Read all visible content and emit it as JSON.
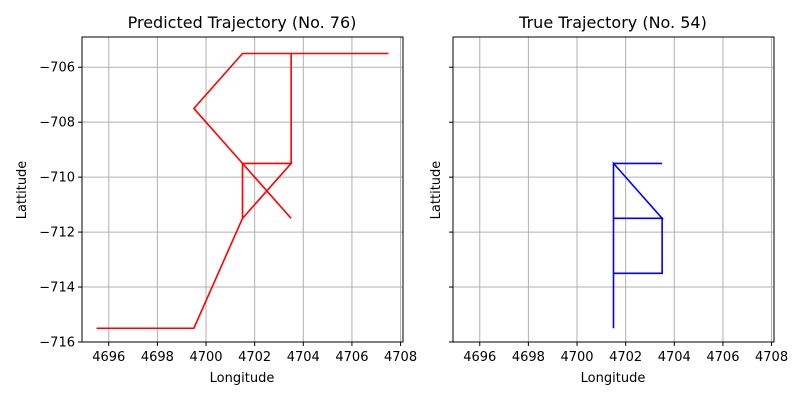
{
  "chart_data": [
    {
      "type": "line",
      "title": "Predicted Trajectory (No. 76)",
      "xlabel": "Longitude",
      "ylabel": "Lattitude",
      "xlim": [
        4694.9,
        4708.1
      ],
      "ylim": [
        -716.0,
        -704.9
      ],
      "xticks": [
        4696,
        4698,
        4700,
        4702,
        4704,
        4706,
        4708
      ],
      "yticks": [
        -706,
        -708,
        -710,
        -712,
        -714,
        -716
      ],
      "ytick_labels_visible": true,
      "grid": true,
      "color": "#ff0000",
      "series": [
        {
          "points": [
            [
              4695.5,
              -715.5
            ],
            [
              4699.5,
              -715.5
            ],
            [
              4701.5,
              -711.5
            ],
            [
              4701.5,
              -709.5
            ],
            [
              4703.5,
              -709.5
            ],
            [
              4701.5,
              -711.5
            ],
            [
              4701.5,
              -709.5
            ],
            [
              4699.5,
              -707.5
            ],
            [
              4701.5,
              -705.5
            ],
            [
              4703.5,
              -705.5
            ],
            [
              4703.5,
              -709.5
            ],
            [
              4701.5,
              -709.5
            ],
            [
              4703.5,
              -711.5
            ],
            [
              4701.5,
              -709.5
            ],
            [
              4703.5,
              -709.5
            ],
            [
              4703.5,
              -705.5
            ],
            [
              4707.5,
              -705.5
            ]
          ]
        }
      ]
    },
    {
      "type": "line",
      "title": "True Trajectory (No. 54)",
      "xlabel": "Longitude",
      "ylabel": "Lattitude",
      "xlim": [
        4694.9,
        4708.1
      ],
      "ylim": [
        -716.0,
        -704.9
      ],
      "xticks": [
        4696,
        4698,
        4700,
        4702,
        4704,
        4706,
        4708
      ],
      "yticks": [
        -706,
        -708,
        -710,
        -712,
        -714,
        -716
      ],
      "ytick_labels_visible": false,
      "grid": true,
      "color": "#0000ff",
      "series": [
        {
          "points": [
            [
              4701.5,
              -715.5
            ],
            [
              4701.5,
              -709.5
            ],
            [
              4703.5,
              -709.5
            ],
            [
              4701.5,
              -709.5
            ],
            [
              4701.5,
              -711.5
            ],
            [
              4703.5,
              -711.5
            ],
            [
              4701.5,
              -709.5
            ],
            [
              4701.5,
              -713.5
            ],
            [
              4703.5,
              -713.5
            ],
            [
              4703.5,
              -711.5
            ],
            [
              4701.5,
              -711.5
            ],
            [
              4701.5,
              -715.5
            ]
          ]
        }
      ]
    }
  ]
}
